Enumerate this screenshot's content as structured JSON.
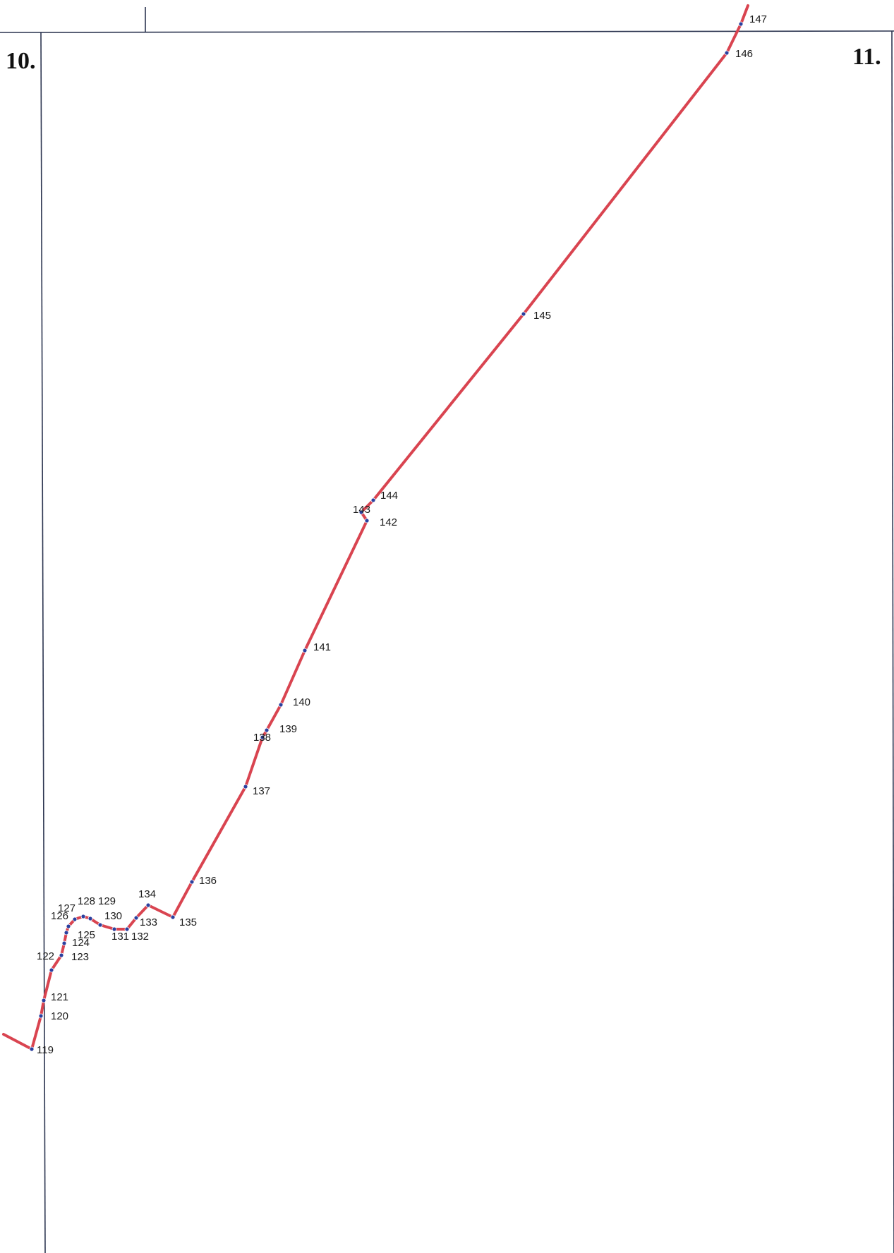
{
  "sheets": {
    "left": "10.",
    "right": "11."
  },
  "colors": {
    "route": "#d94450",
    "point": "#2b3f9e",
    "frame": "#2c3550",
    "label": "#1a1a1a"
  },
  "route_points": [
    "119",
    "120",
    "121",
    "122",
    "123",
    "124",
    "125",
    "126",
    "127",
    "128",
    "129",
    "130",
    "131",
    "132",
    "133",
    "134",
    "135",
    "136",
    "137",
    "138",
    "139",
    "140",
    "141",
    "142",
    "143",
    "144",
    "145",
    "146",
    "147"
  ]
}
